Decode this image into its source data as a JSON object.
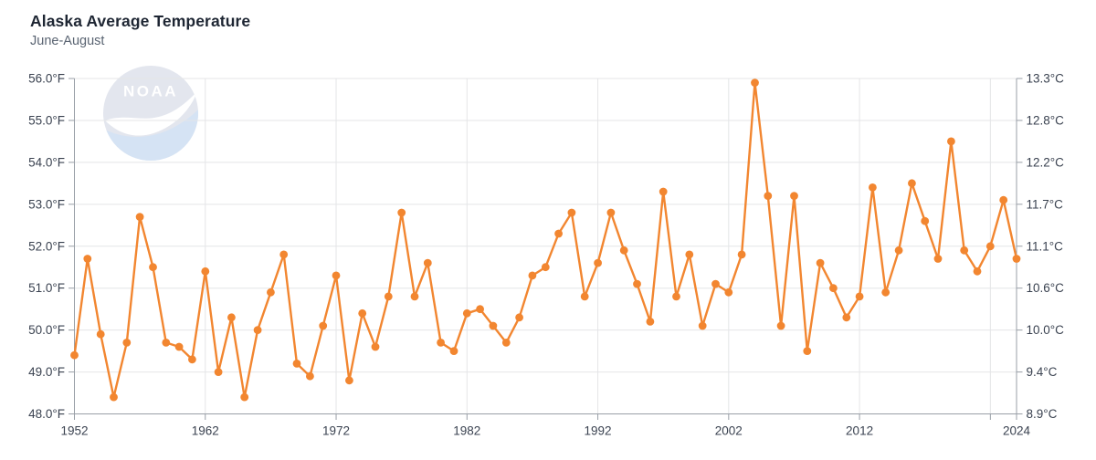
{
  "header": {
    "title": "Alaska Average Temperature",
    "subtitle": "June-August"
  },
  "logo": {
    "text": "NOAA"
  },
  "colors": {
    "line": "#f28630",
    "point": "#f28630",
    "grid": "#e4e5e7",
    "axis": "#999fa7",
    "tick_label": "#3a4250",
    "title": "#1e2633",
    "subtitle": "#5a6472",
    "logo_dark": "#e3e6ee",
    "logo_light": "#d5e3f4",
    "logo_white": "#ffffff"
  },
  "chart_data": {
    "type": "line",
    "title": "Alaska Average Temperature",
    "subtitle": "June-August",
    "xlabel": "",
    "ylabel_left": "°F",
    "ylabel_right": "°C",
    "ylim": [
      48.0,
      56.0
    ],
    "grid": true,
    "legend_position": "none",
    "x": [
      1952,
      1953,
      1954,
      1955,
      1956,
      1957,
      1958,
      1959,
      1960,
      1961,
      1962,
      1963,
      1964,
      1965,
      1966,
      1967,
      1968,
      1969,
      1970,
      1971,
      1972,
      1973,
      1974,
      1975,
      1976,
      1977,
      1978,
      1979,
      1980,
      1981,
      1982,
      1983,
      1984,
      1985,
      1986,
      1987,
      1988,
      1989,
      1990,
      1991,
      1992,
      1993,
      1994,
      1995,
      1996,
      1997,
      1998,
      1999,
      2000,
      2001,
      2002,
      2003,
      2004,
      2005,
      2006,
      2007,
      2008,
      2009,
      2010,
      2011,
      2012,
      2013,
      2014,
      2015,
      2016,
      2017,
      2018,
      2019,
      2020,
      2021,
      2022,
      2023,
      2024
    ],
    "values": [
      49.4,
      51.7,
      49.9,
      48.4,
      49.7,
      52.7,
      51.5,
      49.7,
      49.6,
      49.3,
      51.4,
      49.0,
      50.3,
      48.4,
      50.0,
      50.9,
      51.8,
      49.2,
      48.9,
      50.1,
      51.3,
      48.8,
      50.4,
      49.6,
      50.8,
      52.8,
      50.8,
      51.6,
      49.7,
      49.5,
      50.4,
      50.5,
      50.1,
      49.7,
      50.3,
      51.3,
      51.5,
      52.3,
      52.8,
      50.8,
      51.6,
      52.8,
      51.9,
      51.1,
      50.2,
      53.3,
      50.8,
      51.8,
      50.1,
      51.1,
      50.9,
      51.8,
      55.9,
      53.2,
      50.1,
      53.2,
      49.5,
      51.6,
      51.0,
      50.3,
      50.8,
      53.4,
      50.9,
      51.9,
      53.5,
      52.6,
      51.7,
      54.5,
      51.9,
      51.4,
      52.0,
      53.1,
      51.7
    ],
    "y_ticks_f": [
      {
        "value": 48.0,
        "label": "48.0°F"
      },
      {
        "value": 49.0,
        "label": "49.0°F"
      },
      {
        "value": 50.0,
        "label": "50.0°F"
      },
      {
        "value": 51.0,
        "label": "51.0°F"
      },
      {
        "value": 52.0,
        "label": "52.0°F"
      },
      {
        "value": 53.0,
        "label": "53.0°F"
      },
      {
        "value": 54.0,
        "label": "54.0°F"
      },
      {
        "value": 55.0,
        "label": "55.0°F"
      },
      {
        "value": 56.0,
        "label": "56.0°F"
      }
    ],
    "y_ticks_c": [
      {
        "value": 48.0,
        "label": "8.9°C"
      },
      {
        "value": 49.0,
        "label": "9.4°C"
      },
      {
        "value": 50.0,
        "label": "10.0°C"
      },
      {
        "value": 51.0,
        "label": "10.6°C"
      },
      {
        "value": 52.0,
        "label": "11.1°C"
      },
      {
        "value": 53.0,
        "label": "11.7°C"
      },
      {
        "value": 54.0,
        "label": "12.2°C"
      },
      {
        "value": 55.0,
        "label": "12.8°C"
      },
      {
        "value": 56.0,
        "label": "13.3°C"
      }
    ],
    "x_ticks": [
      {
        "year": 1952,
        "label": "1952"
      },
      {
        "year": 1962,
        "label": "1962"
      },
      {
        "year": 1972,
        "label": "1972"
      },
      {
        "year": 1982,
        "label": "1982"
      },
      {
        "year": 1992,
        "label": "1992"
      },
      {
        "year": 2002,
        "label": "2002"
      },
      {
        "year": 2012,
        "label": "2012"
      },
      {
        "year": 2022,
        "label": ""
      },
      {
        "year": 2024,
        "label": "2024"
      }
    ],
    "grid_years": [
      1962,
      1972,
      1982,
      1992,
      2002,
      2012,
      2022
    ]
  }
}
